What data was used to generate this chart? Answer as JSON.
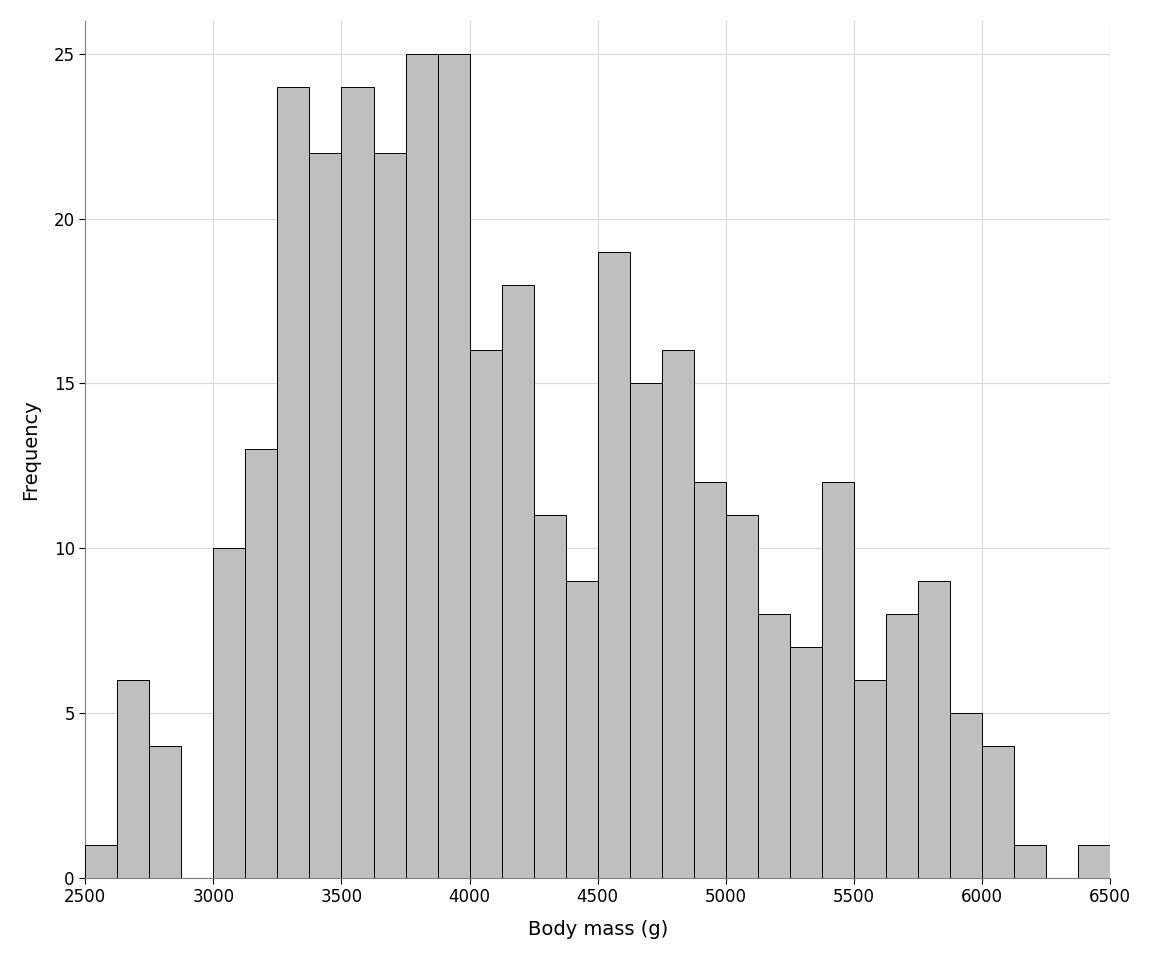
{
  "bin_start": 2500,
  "bin_width": 125,
  "frequencies": [
    1,
    6,
    4,
    0,
    10,
    13,
    24,
    22,
    24,
    22,
    25,
    25,
    16,
    18,
    11,
    9,
    19,
    15,
    16,
    12,
    11,
    8,
    7,
    12,
    6,
    8,
    9,
    5,
    4,
    1,
    0,
    1
  ],
  "bar_color": "#bfbfbf",
  "bar_edge_color": "#000000",
  "bar_edge_width": 0.7,
  "xlabel": "Body mass (g)",
  "ylabel": "Frequency",
  "xlim": [
    2500,
    6500
  ],
  "ylim": [
    0,
    26
  ],
  "xticks": [
    2500,
    3000,
    3500,
    4000,
    4500,
    5000,
    5500,
    6000,
    6500
  ],
  "yticks": [
    0,
    5,
    10,
    15,
    20,
    25
  ],
  "grid_color": "#d9d9d9",
  "panel_background": "#ffffff",
  "plot_background": "#ffffff",
  "xlabel_fontsize": 14,
  "ylabel_fontsize": 14,
  "tick_fontsize": 12,
  "title": ""
}
